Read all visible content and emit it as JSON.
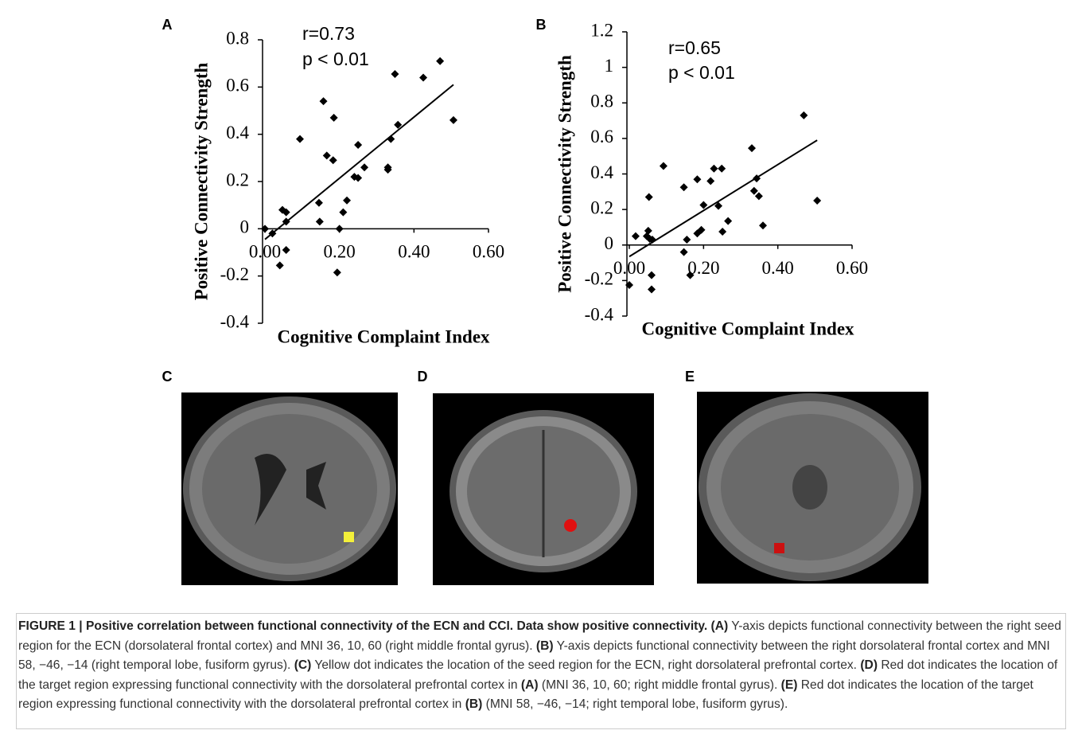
{
  "chart_data": [
    {
      "type": "scatter",
      "label": "A",
      "xlabel": "Cognitive Complaint Index",
      "ylabel": "Positive Connectivity Strength",
      "annotations": [
        "r=0.73",
        "p < 0.01"
      ],
      "xlim": [
        0,
        0.6
      ],
      "ylim": [
        -0.4,
        0.8
      ],
      "xticks": [
        {
          "value": 0,
          "label": "0.00"
        },
        {
          "value": 0.2,
          "label": "0.20"
        },
        {
          "value": 0.4,
          "label": "0.40"
        },
        {
          "value": 0.6,
          "label": "0.60"
        }
      ],
      "yticks": [
        -0.4,
        -0.2,
        0,
        0.2,
        0.4,
        0.6,
        0.8
      ],
      "color": "#000000",
      "x": [
        0,
        0.02,
        0.047,
        0.057,
        0.057,
        0.057,
        0.04,
        0.094,
        0.145,
        0.147,
        0.157,
        0.166,
        0.183,
        0.185,
        0.194,
        0.2,
        0.21,
        0.22,
        0.24,
        0.25,
        0.25,
        0.267,
        0.33,
        0.33,
        0.338,
        0.349,
        0.357,
        0.425,
        0.47,
        0.506
      ],
      "y": [
        0,
        -0.02,
        0.08,
        0.07,
        0.03,
        -0.09,
        -0.155,
        0.38,
        0.11,
        0.03,
        0.54,
        0.31,
        0.29,
        0.47,
        -0.185,
        0,
        0.07,
        0.12,
        0.22,
        0.215,
        0.355,
        0.26,
        0.25,
        0.26,
        0.38,
        0.655,
        0.44,
        0.64,
        0.71,
        0.46
      ],
      "trendline": {
        "x": [
          0,
          0.506
        ],
        "y": [
          -0.045,
          0.61
        ]
      }
    },
    {
      "type": "scatter",
      "label": "B",
      "xlabel": "Cognitive Complaint Index",
      "ylabel": "Positive Connectivity Strength",
      "annotations": [
        "r=0.65",
        "p < 0.01"
      ],
      "xlim": [
        0,
        0.6
      ],
      "ylim": [
        -0.4,
        1.2
      ],
      "xticks": [
        {
          "value": 0,
          "label": "0.00"
        },
        {
          "value": 0.2,
          "label": "0.20"
        },
        {
          "value": 0.4,
          "label": "0.40"
        },
        {
          "value": 0.6,
          "label": "0.60"
        }
      ],
      "yticks": [
        -0.4,
        -0.2,
        0,
        0.2,
        0.4,
        0.6,
        0.8,
        1,
        1.2
      ],
      "color": "#000000",
      "x": [
        0,
        0.017,
        0.047,
        0.051,
        0.055,
        0.053,
        0.062,
        0.06,
        0.06,
        0.092,
        0.147,
        0.155,
        0.147,
        0.164,
        0.183,
        0.183,
        0.194,
        0.2,
        0.219,
        0.228,
        0.24,
        0.249,
        0.251,
        0.266,
        0.33,
        0.336,
        0.343,
        0.349,
        0.36,
        0.47,
        0.506
      ],
      "y": [
        -0.225,
        0.05,
        0.05,
        0.08,
        0.035,
        0.27,
        0.03,
        -0.17,
        -0.25,
        0.445,
        0.325,
        0.03,
        -0.04,
        -0.17,
        0.37,
        0.065,
        0.085,
        0.225,
        0.36,
        0.43,
        0.22,
        0.43,
        0.075,
        0.135,
        0.545,
        0.305,
        0.375,
        0.275,
        0.11,
        0.73,
        0.25
      ],
      "trendline": {
        "x": [
          0,
          0.506
        ],
        "y": [
          -0.065,
          0.59
        ]
      }
    }
  ],
  "panels": [
    {
      "label": "C"
    },
    {
      "label": "D"
    },
    {
      "label": "E"
    }
  ],
  "caption": [
    {
      "text": "FIGURE 1 | Positive correlation between functional connectivity of the ECN and CCI. Data show positive connectivity. (A)",
      "bold": true
    },
    {
      "text": " Y-axis depicts functional connectivity between the right seed region for the ECN (dorsolateral frontal cortex) and MNI 36, 10, 60 (right middle frontal gyrus). ",
      "bold": false
    },
    {
      "text": "(B)",
      "bold": true
    },
    {
      "text": " Y-axis depicts functional connectivity between the right dorsolateral frontal cortex and MNI 58, −46, −14 (right temporal lobe, fusiform gyrus). ",
      "bold": false
    },
    {
      "text": "(C)",
      "bold": true
    },
    {
      "text": " Yellow dot indicates the location of the seed region for the ECN, right dorsolateral prefrontal cortex. ",
      "bold": false
    },
    {
      "text": "(D)",
      "bold": true
    },
    {
      "text": " Red dot indicates the location of the target region expressing functional connectivity with the dorsolateral prefrontal cortex in ",
      "bold": false
    },
    {
      "text": "(A)",
      "bold": true
    },
    {
      "text": " (MNI 36, 10, 60; right middle frontal gyrus). ",
      "bold": false
    },
    {
      "text": "(E)",
      "bold": true
    },
    {
      "text": " Red dot indicates the location of the target region expressing functional connectivity with the dorsolateral prefrontal cortex in ",
      "bold": false
    },
    {
      "text": "(B)",
      "bold": true
    },
    {
      "text": " (MNI 58, −46, −14; right temporal lobe, fusiform gyrus).",
      "bold": false
    }
  ]
}
